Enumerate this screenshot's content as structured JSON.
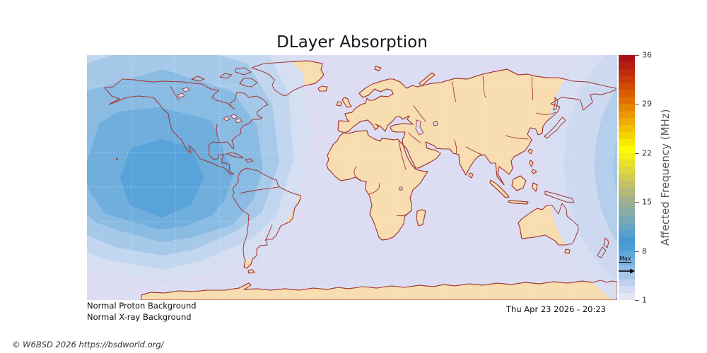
{
  "title": "DLayer Absorption",
  "annotations": {
    "proton": "Normal Proton Background",
    "xray": "Normal X-ray Background"
  },
  "timestamp": "Thu Apr 23 2026 - 20:23",
  "copyright": "© W6BSD 2026 https://bsdworld.org/",
  "colorbar": {
    "label": "Affected Frequency (MHz)",
    "min": 1,
    "max": 36,
    "ticks": [
      1,
      8,
      15,
      22,
      29,
      36
    ],
    "max_marker": {
      "label": "Max",
      "value": 7
    },
    "segment_colors": [
      "#e4e6f6",
      "#d3dcf3",
      "#bdd1ef",
      "#a6c7ea",
      "#8fbbe4",
      "#77b0de",
      "#61a7da",
      "#4d9ed7",
      "#469ad4",
      "#57a0cd",
      "#68a5c1",
      "#79a8b5",
      "#88aba8",
      "#96ae9a",
      "#a4b28b",
      "#b3b979",
      "#c2c166",
      "#d0cb52",
      "#ddd63e",
      "#e9e229",
      "#f4ef14",
      "#fdfb03",
      "#f9e800",
      "#f5d400",
      "#f1c000",
      "#edac00",
      "#e99800",
      "#e48500",
      "#df7100",
      "#d95e00",
      "#d14b03",
      "#c83a09",
      "#bf2b0e",
      "#b41e12",
      "#aa1316"
    ]
  },
  "map": {
    "ocean_color": "#dcddf2",
    "land_color": "#f7ddb0",
    "coast_color": "#a33530",
    "grid_color": "#ffffff",
    "absorption": {
      "band_colors": [
        "#d6def2",
        "#c2d6ef",
        "#a6c9e9",
        "#8abbe3",
        "#6faedd",
        "#58a3da"
      ],
      "wrapped_band_colors": [
        "#d7def2",
        "#ccd9f0",
        "#b4cfeb",
        "#a3c6e8"
      ]
    }
  }
}
